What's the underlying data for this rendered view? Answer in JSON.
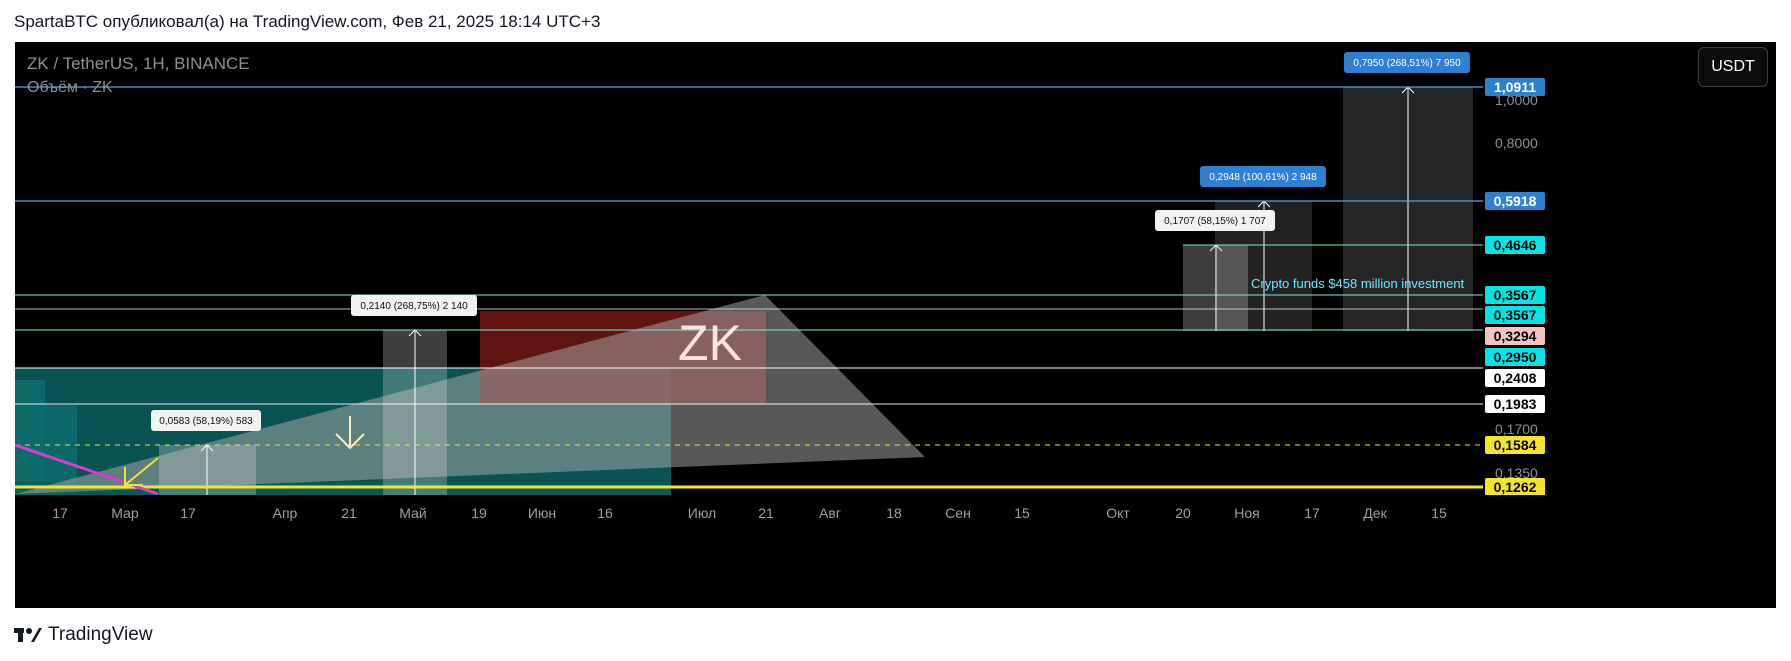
{
  "header": {
    "publisher": "SpartaBTC опубликовал(а) на TradingView.com, Фев 21, 2025 18:14 UTC+3"
  },
  "chart_info": {
    "symbol": "ZK / TetherUS, 1H, BINANCE",
    "volume": "Объём · ZK",
    "currency": "USDT"
  },
  "footer": {
    "brand": "TradingView"
  },
  "colors": {
    "background": "#000000",
    "blue_label": "#2f80d1",
    "cyan_label": "#00e6e6",
    "yellow_label": "#f5e52a",
    "pink_label": "#f4c4c4",
    "white_label": "#ffffff"
  },
  "chart_data": {
    "type": "price-chart-annotations",
    "title": "ZK / TetherUS, 1H, BINANCE",
    "watermark": "ZK",
    "annotation_text": "Crypto funds $458 million investment",
    "x_ticks": [
      "17",
      "Мар",
      "17",
      "Апр",
      "21",
      "Май",
      "19",
      "Июн",
      "16",
      "Июл",
      "21",
      "Авг",
      "18",
      "Сен",
      "15",
      "Окт",
      "20",
      "Ноя",
      "17",
      "Дек",
      "15"
    ],
    "y_axis_gray": [
      "1,0000",
      "0,8000",
      "0,1700",
      "0,1350"
    ],
    "price_levels": [
      {
        "value": "1,0911",
        "style": "blue"
      },
      {
        "value": "0,5918",
        "style": "blue"
      },
      {
        "value": "0,4646",
        "style": "cyan"
      },
      {
        "value": "0,3567",
        "style": "cyan"
      },
      {
        "value": "0,3567",
        "style": "cyan"
      },
      {
        "value": "0,3294",
        "style": "pink"
      },
      {
        "value": "0,2950",
        "style": "cyan"
      },
      {
        "value": "0,2408",
        "style": "white"
      },
      {
        "value": "0,1983",
        "style": "white"
      },
      {
        "value": "0,1584",
        "style": "yellow"
      },
      {
        "value": "0,1262",
        "style": "yellow"
      }
    ],
    "measurement_labels": [
      {
        "text": "0,0583 (58,19%) 583",
        "style": "white"
      },
      {
        "text": "0,2140 (268,75%) 2 140",
        "style": "white"
      },
      {
        "text": "0,1707 (58,15%) 1 707",
        "style": "white"
      },
      {
        "text": "0,2948 (100,61%) 2 948",
        "style": "blue"
      },
      {
        "text": "0,7950 (268,51%) 7 950",
        "style": "blue"
      }
    ]
  }
}
